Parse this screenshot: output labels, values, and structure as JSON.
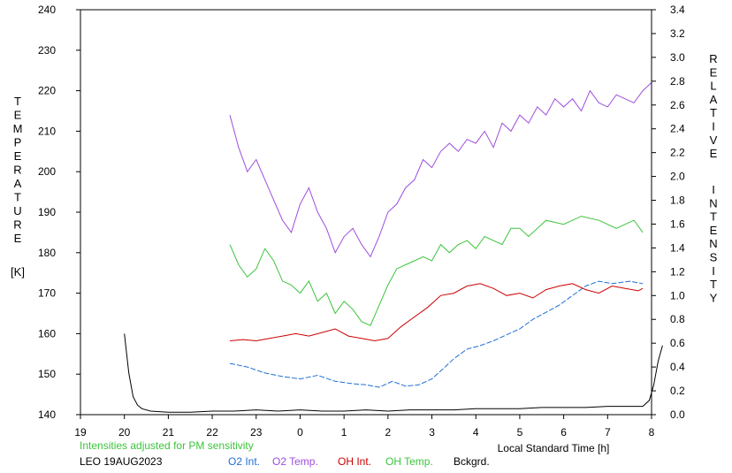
{
  "chart_data": {
    "type": "line",
    "left_axis": {
      "label_letters": [
        "T",
        "E",
        "M",
        "P",
        "E",
        "R",
        "A",
        "T",
        "U",
        "R",
        "E"
      ],
      "unit": "[K]",
      "range": [
        140,
        240
      ],
      "ticks": [
        "140",
        "150",
        "160",
        "170",
        "180",
        "190",
        "200",
        "210",
        "220",
        "230",
        "240"
      ]
    },
    "right_axis": {
      "label_word1": [
        "R",
        "E",
        "L",
        "A",
        "T",
        "I",
        "V",
        "E"
      ],
      "label_word2": [
        "I",
        "N",
        "T",
        "E",
        "N",
        "S",
        "I",
        "T",
        "Y"
      ],
      "range": [
        0.0,
        3.4
      ],
      "ticks": [
        "0.0",
        "0.2",
        "0.4",
        "0.6",
        "0.8",
        "1.0",
        "1.2",
        "1.4",
        "1.6",
        "1.8",
        "2.0",
        "2.2",
        "2.4",
        "2.6",
        "2.8",
        "3.0",
        "3.2",
        "3.4"
      ]
    },
    "x_axis": {
      "label": "Local Standard Time [h]",
      "range": [
        19,
        32
      ],
      "ticks": [
        "19",
        "20",
        "21",
        "22",
        "23",
        "0",
        "1",
        "2",
        "3",
        "4",
        "5",
        "6",
        "7",
        "8"
      ]
    },
    "note": "Intensities adjusted for PM sensitivity",
    "station_date": "LEO 19AUG2023",
    "grid": false,
    "legend_position": "bottom",
    "series": [
      {
        "name": "O2 Int.",
        "color": "#1f6fd6",
        "axis": "right",
        "style": "dashed",
        "x": [
          22.4,
          22.8,
          23.2,
          23.6,
          24.0,
          24.4,
          24.8,
          25.2,
          25.5,
          25.8,
          26.1,
          26.4,
          26.7,
          27.0,
          27.3,
          27.5,
          27.8,
          28.1,
          28.4,
          28.7,
          29.0,
          29.3,
          29.6,
          29.9,
          30.2,
          30.5,
          30.8,
          31.1,
          31.5,
          31.8
        ],
        "y": [
          0.43,
          0.4,
          0.35,
          0.32,
          0.3,
          0.33,
          0.28,
          0.26,
          0.25,
          0.23,
          0.28,
          0.24,
          0.25,
          0.3,
          0.4,
          0.47,
          0.55,
          0.58,
          0.62,
          0.67,
          0.72,
          0.8,
          0.86,
          0.92,
          1.0,
          1.08,
          1.12,
          1.1,
          1.12,
          1.1
        ]
      },
      {
        "name": "O2 Temp.",
        "color": "#9d4edd",
        "axis": "left",
        "style": "solid",
        "x": [
          22.4,
          22.6,
          22.8,
          23.0,
          23.2,
          23.4,
          23.6,
          23.8,
          24.0,
          24.2,
          24.4,
          24.6,
          24.8,
          25.0,
          25.2,
          25.4,
          25.6,
          25.8,
          26.0,
          26.2,
          26.4,
          26.6,
          26.8,
          27.0,
          27.2,
          27.4,
          27.6,
          27.8,
          28.0,
          28.2,
          28.4,
          28.6,
          28.8,
          29.0,
          29.2,
          29.4,
          29.6,
          29.8,
          30.0,
          30.2,
          30.4,
          30.6,
          30.8,
          31.0,
          31.2,
          31.4,
          31.6,
          31.8,
          32.0
        ],
        "y": [
          214,
          206,
          200,
          203,
          198,
          193,
          188,
          185,
          192,
          196,
          190,
          186,
          180,
          184,
          186,
          182,
          179,
          184,
          190,
          192,
          196,
          198,
          203,
          201,
          205,
          207,
          205,
          208,
          207,
          210,
          206,
          212,
          210,
          214,
          212,
          216,
          214,
          218,
          216,
          218,
          215,
          220,
          217,
          216,
          219,
          218,
          217,
          220,
          222
        ]
      },
      {
        "name": "OH Int.",
        "color": "#cc0000",
        "axis": "right",
        "style": "solid",
        "x": [
          22.4,
          22.7,
          23.0,
          23.3,
          23.6,
          23.9,
          24.2,
          24.5,
          24.8,
          25.1,
          25.4,
          25.7,
          26.0,
          26.3,
          26.6,
          26.9,
          27.2,
          27.5,
          27.8,
          28.1,
          28.4,
          28.7,
          29.0,
          29.3,
          29.6,
          29.9,
          30.2,
          30.5,
          30.8,
          31.1,
          31.4,
          31.7,
          31.8
        ],
        "y": [
          0.62,
          0.63,
          0.62,
          0.64,
          0.66,
          0.68,
          0.66,
          0.69,
          0.72,
          0.66,
          0.64,
          0.62,
          0.64,
          0.74,
          0.82,
          0.9,
          1.0,
          1.02,
          1.08,
          1.1,
          1.06,
          1.0,
          1.02,
          0.98,
          1.05,
          1.08,
          1.1,
          1.05,
          1.02,
          1.08,
          1.06,
          1.04,
          1.06
        ]
      },
      {
        "name": "OH Temp.",
        "color": "#3cc43c",
        "axis": "left",
        "style": "solid",
        "x": [
          22.4,
          22.6,
          22.8,
          23.0,
          23.2,
          23.4,
          23.6,
          23.8,
          24.0,
          24.2,
          24.4,
          24.6,
          24.8,
          25.0,
          25.2,
          25.4,
          25.6,
          25.8,
          26.0,
          26.2,
          26.4,
          26.6,
          26.8,
          27.0,
          27.2,
          27.4,
          27.6,
          27.8,
          28.0,
          28.2,
          28.4,
          28.6,
          28.8,
          29.0,
          29.2,
          29.6,
          30.0,
          30.4,
          30.8,
          31.2,
          31.6,
          31.8
        ],
        "y": [
          182,
          177,
          174,
          176,
          181,
          178,
          173,
          172,
          170,
          173,
          168,
          170,
          165,
          168,
          166,
          163,
          162,
          167,
          172,
          176,
          177,
          178,
          179,
          178,
          182,
          180,
          182,
          183,
          181,
          184,
          183,
          182,
          186,
          186,
          184,
          188,
          187,
          189,
          188,
          186,
          188,
          185
        ]
      },
      {
        "name": "Bckgrd.",
        "color": "#000000",
        "axis": "right",
        "style": "solid",
        "x": [
          20.0,
          20.1,
          20.2,
          20.3,
          20.4,
          20.6,
          21.0,
          21.5,
          22.0,
          22.5,
          23.0,
          23.5,
          24.0,
          24.5,
          25.0,
          25.5,
          26.0,
          26.5,
          27.0,
          27.5,
          28.0,
          28.5,
          29.0,
          29.5,
          30.0,
          30.5,
          31.0,
          31.5,
          31.8,
          31.95,
          32.05,
          32.15,
          32.25
        ],
        "y": [
          0.68,
          0.35,
          0.15,
          0.08,
          0.05,
          0.03,
          0.02,
          0.02,
          0.03,
          0.03,
          0.04,
          0.03,
          0.04,
          0.03,
          0.03,
          0.04,
          0.03,
          0.04,
          0.04,
          0.04,
          0.05,
          0.05,
          0.05,
          0.06,
          0.06,
          0.06,
          0.07,
          0.07,
          0.07,
          0.12,
          0.25,
          0.45,
          0.58
        ]
      }
    ]
  }
}
